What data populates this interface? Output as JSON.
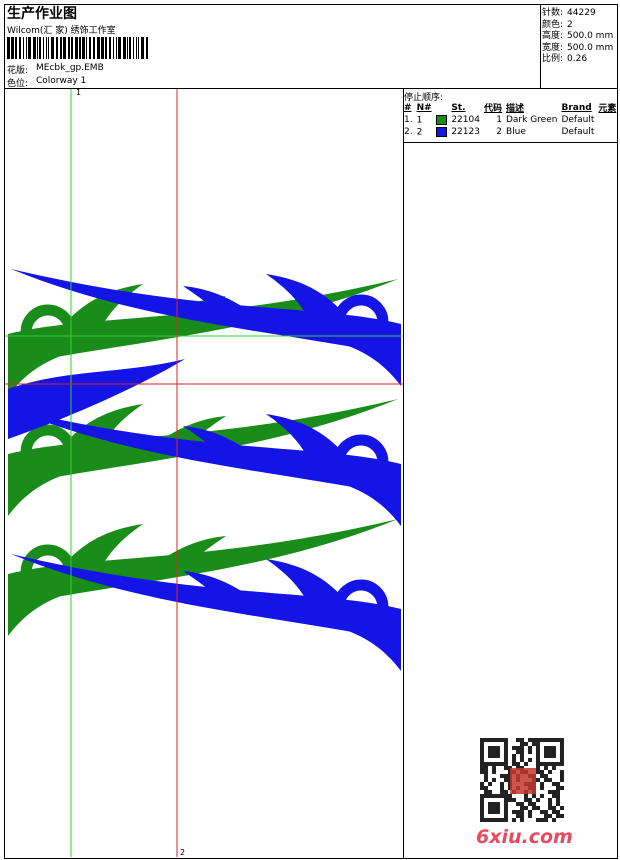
{
  "header": {
    "title": "生产作业图",
    "company": "Wilcom(汇 家) 绣饰工作室",
    "design_label": "花版:",
    "design": "MEcbk_gp.EMB",
    "colorway_label": "色位:",
    "colorway": "Colorway 1"
  },
  "info": [
    {
      "label": "针数:",
      "value": "44229"
    },
    {
      "label": "颜色:",
      "value": "2"
    },
    {
      "label": "高度:",
      "value": "500.0 mm"
    },
    {
      "label": "宽度:",
      "value": "500.0 mm"
    },
    {
      "label": "比例:",
      "value": "0.26"
    }
  ],
  "stop_sequence": {
    "title": "停止顺序:",
    "columns": [
      "#",
      "N#",
      "St.",
      "代码",
      "描述",
      "Brand",
      "元素"
    ],
    "rows": [
      {
        "index": "1.",
        "n": "1",
        "color": "#1a8c1a",
        "stitches": "22104",
        "code": "1",
        "description": "Dark Green",
        "brand": "Default"
      },
      {
        "index": "2.",
        "n": "2",
        "color": "#1414e6",
        "stitches": "22123",
        "code": "2",
        "description": "Blue",
        "brand": "Default"
      }
    ]
  },
  "guides": [
    "1",
    "2"
  ],
  "watermark": "6xiu.com"
}
